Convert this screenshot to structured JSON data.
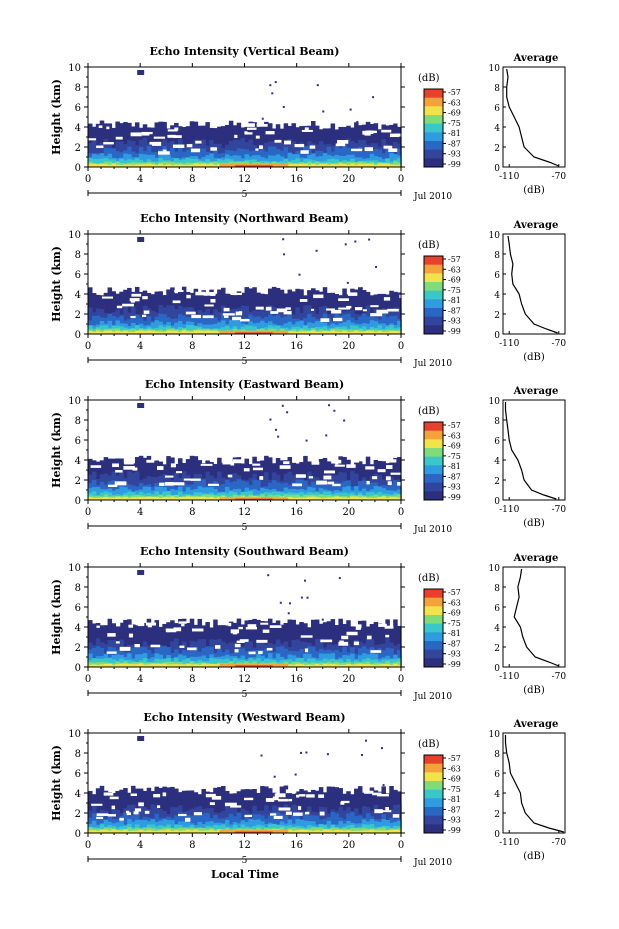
{
  "figure": {
    "xlabel": "Local Time",
    "colorbar_unit": "(dB)",
    "colorbar_ticks": [
      "-57",
      "-63",
      "-69",
      "-75",
      "-81",
      "-87",
      "-93",
      "-99"
    ],
    "colors": [
      "#2b2f7e",
      "#32459d",
      "#2a66c4",
      "#2f9be0",
      "#39c7c9",
      "#7fdc7a",
      "#f2e34a",
      "#f6a23a",
      "#e8402b"
    ],
    "date_label": "Jul 2010",
    "center_marker_label": "5",
    "avg_title": "Average",
    "avg_xlabel": "(dB)"
  },
  "chart_data": [
    {
      "type": "heatmap",
      "title": "Echo Intensity (Vertical Beam)",
      "ylabel": "Height (km)",
      "xlim": [
        0,
        24
      ],
      "ylim": [
        0,
        10
      ],
      "xticks": [
        "0",
        "4",
        "8",
        "12",
        "16",
        "20",
        "0"
      ],
      "yticks": [
        "0",
        "2",
        "4",
        "6",
        "8",
        "10"
      ],
      "colorbar_range_db": [
        -99,
        -57
      ],
      "echo_top_km": 4.2,
      "surface_max_db": -57,
      "average_profile": {
        "xticks": [
          "-110",
          "-70"
        ],
        "xlim": [
          -115,
          -65
        ],
        "ylim": [
          0,
          10
        ],
        "height_km": [
          0.1,
          0.5,
          1.0,
          2.0,
          3.0,
          4.0,
          5.0,
          6.0,
          7.0,
          8.0,
          9.0,
          9.8
        ],
        "value_db": [
          -70,
          -78,
          -90,
          -98,
          -100,
          -102,
          -106,
          -110,
          -112,
          -112,
          -111,
          -112
        ]
      }
    },
    {
      "type": "heatmap",
      "title": "Echo Intensity (Northward Beam)",
      "ylabel": "Height (km)",
      "xlim": [
        0,
        24
      ],
      "ylim": [
        0,
        10
      ],
      "xticks": [
        "0",
        "4",
        "8",
        "12",
        "16",
        "20",
        "0"
      ],
      "yticks": [
        "0",
        "2",
        "4",
        "6",
        "8",
        "10"
      ],
      "colorbar_range_db": [
        -99,
        -57
      ],
      "echo_top_km": 4.3,
      "surface_max_db": -60,
      "average_profile": {
        "xticks": [
          "-110",
          "-70"
        ],
        "xlim": [
          -115,
          -65
        ],
        "ylim": [
          0,
          10
        ],
        "height_km": [
          0.1,
          0.5,
          1.0,
          2.0,
          3.0,
          4.0,
          5.0,
          6.0,
          7.0,
          8.0,
          9.0,
          9.8
        ],
        "value_db": [
          -71,
          -80,
          -90,
          -97,
          -100,
          -102,
          -107,
          -108,
          -107,
          -109,
          -110,
          -111
        ]
      }
    },
    {
      "type": "heatmap",
      "title": "Echo Intensity (Eastward Beam)",
      "ylabel": "Height (km)",
      "xlim": [
        0,
        24
      ],
      "ylim": [
        0,
        10
      ],
      "xticks": [
        "0",
        "4",
        "8",
        "12",
        "16",
        "20",
        "0"
      ],
      "yticks": [
        "0",
        "2",
        "4",
        "6",
        "8",
        "10"
      ],
      "colorbar_range_db": [
        -99,
        -57
      ],
      "echo_top_km": 4.0,
      "surface_max_db": -66,
      "average_profile": {
        "xticks": [
          "-110",
          "-70"
        ],
        "xlim": [
          -115,
          -65
        ],
        "ylim": [
          0,
          10
        ],
        "height_km": [
          0.1,
          0.5,
          1.0,
          2.0,
          3.0,
          4.0,
          5.0,
          6.0,
          7.0,
          8.0,
          9.0,
          9.8
        ],
        "value_db": [
          -72,
          -82,
          -92,
          -98,
          -100,
          -103,
          -108,
          -110,
          -111,
          -112,
          -113,
          -113
        ]
      }
    },
    {
      "type": "heatmap",
      "title": "Echo Intensity (Southward Beam)",
      "ylabel": "Height (km)",
      "xlim": [
        0,
        24
      ],
      "ylim": [
        0,
        10
      ],
      "xticks": [
        "0",
        "4",
        "8",
        "12",
        "16",
        "20",
        "0"
      ],
      "yticks": [
        "0",
        "2",
        "4",
        "6",
        "8",
        "10"
      ],
      "colorbar_range_db": [
        -99,
        -57
      ],
      "echo_top_km": 4.4,
      "surface_max_db": -58,
      "average_profile": {
        "xticks": [
          "-110",
          "-70"
        ],
        "xlim": [
          -115,
          -65
        ],
        "ylim": [
          0,
          10
        ],
        "height_km": [
          0.1,
          0.5,
          1.0,
          2.0,
          3.0,
          4.0,
          5.0,
          6.0,
          7.0,
          8.0,
          9.0,
          9.8
        ],
        "value_db": [
          -70,
          -78,
          -89,
          -96,
          -99,
          -101,
          -106,
          -104,
          -102,
          -103,
          -101,
          -100
        ]
      }
    },
    {
      "type": "heatmap",
      "title": "Echo Intensity (Westward Beam)",
      "ylabel": "Height (km)",
      "xlim": [
        0,
        24
      ],
      "ylim": [
        0,
        10
      ],
      "xticks": [
        "0",
        "4",
        "8",
        "12",
        "16",
        "20",
        "0"
      ],
      "yticks": [
        "0",
        "2",
        "4",
        "6",
        "8",
        "10"
      ],
      "colorbar_range_db": [
        -99,
        -57
      ],
      "echo_top_km": 4.3,
      "surface_max_db": -64,
      "average_profile": {
        "xticks": [
          "-110",
          "-70"
        ],
        "xlim": [
          -115,
          -65
        ],
        "ylim": [
          0,
          10
        ],
        "height_km": [
          0.1,
          0.5,
          1.0,
          2.0,
          3.0,
          4.0,
          5.0,
          6.0,
          7.0,
          8.0,
          9.0,
          9.8
        ],
        "value_db": [
          -66,
          -78,
          -90,
          -97,
          -100,
          -101,
          -105,
          -109,
          -110,
          -112,
          -113,
          -113
        ]
      }
    }
  ]
}
